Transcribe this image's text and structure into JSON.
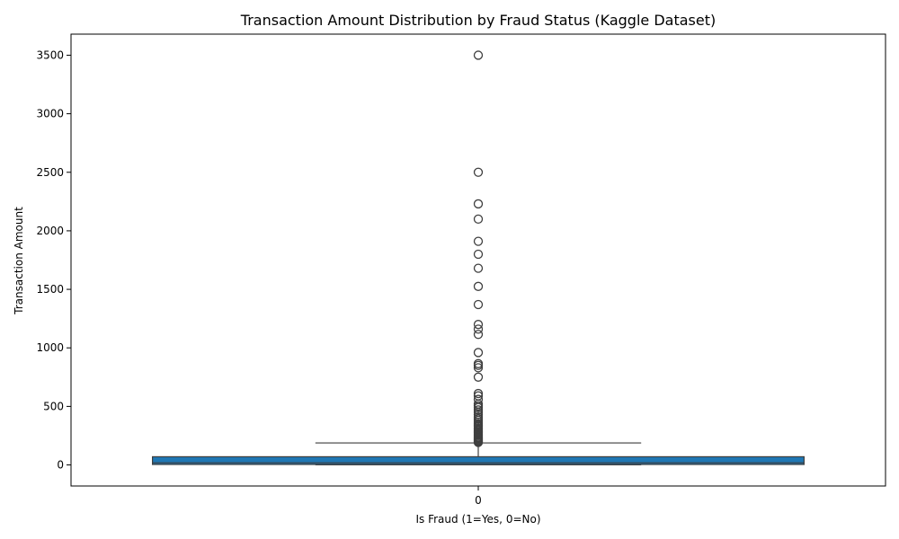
{
  "chart_data": {
    "type": "box",
    "title": "Transaction Amount Distribution by Fraud Status (Kaggle Dataset)",
    "xlabel": "Is Fraud (1=Yes, 0=No)",
    "ylabel": "Transaction Amount",
    "categories": [
      "0"
    ],
    "ylim": [
      -180,
      3680
    ],
    "yticks": [
      0,
      500,
      1000,
      1500,
      2000,
      2500,
      3000,
      3500
    ],
    "grid": false,
    "box_color": "#1f77b4",
    "boxes": [
      {
        "category": "0",
        "whisker_low": 1,
        "q1": 4,
        "median": 18,
        "q3": 70,
        "whisker_high": 188,
        "outliers": [
          3500,
          2500,
          2230,
          2100,
          1910,
          1800,
          1680,
          1525,
          1370,
          1200,
          1160,
          1115,
          960,
          865,
          850,
          830,
          750,
          610,
          590,
          560,
          520,
          505,
          490,
          470,
          450,
          430,
          410,
          395,
          380,
          365,
          350,
          340,
          330,
          318,
          305,
          295,
          285,
          275,
          265,
          255,
          245,
          235,
          228,
          220,
          212,
          205,
          198,
          192
        ]
      }
    ]
  }
}
